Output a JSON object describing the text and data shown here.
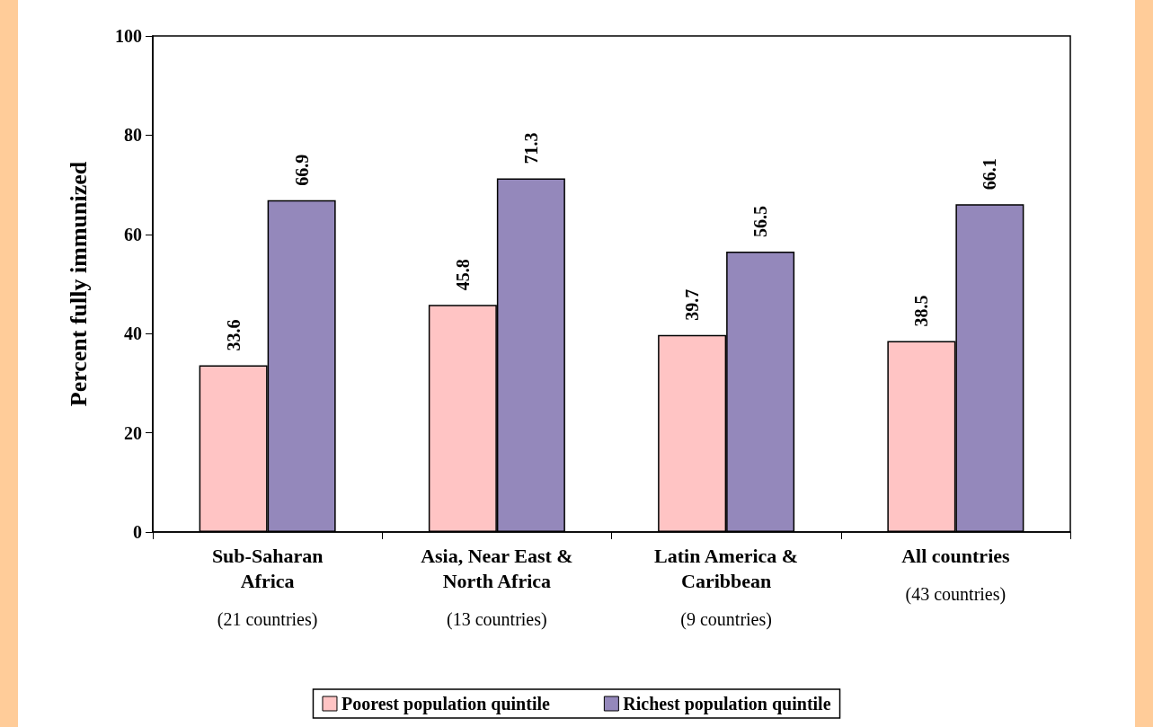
{
  "chart_data": {
    "type": "bar",
    "ylabel": "Percent fully immunized",
    "categories": [
      "Sub-Saharan Africa (21 countries)",
      "Asia, Near East & North Africa (13 countries)",
      "Latin America & Caribbean (9 countries)",
      "All countries (43 countries)"
    ],
    "series": [
      {
        "name": "Poorest population quintile",
        "color": "#ffc4c4",
        "values": [
          33.6,
          45.8,
          39.7,
          38.5
        ]
      },
      {
        "name": "Richest population quintile",
        "color": "#9488bb",
        "values": [
          66.9,
          71.3,
          56.5,
          66.1
        ]
      }
    ],
    "ylim": [
      0,
      100
    ],
    "yticks": [
      0,
      20,
      40,
      60,
      80,
      100
    ],
    "grid": false,
    "legend": "bottom",
    "data_labels": true
  }
}
